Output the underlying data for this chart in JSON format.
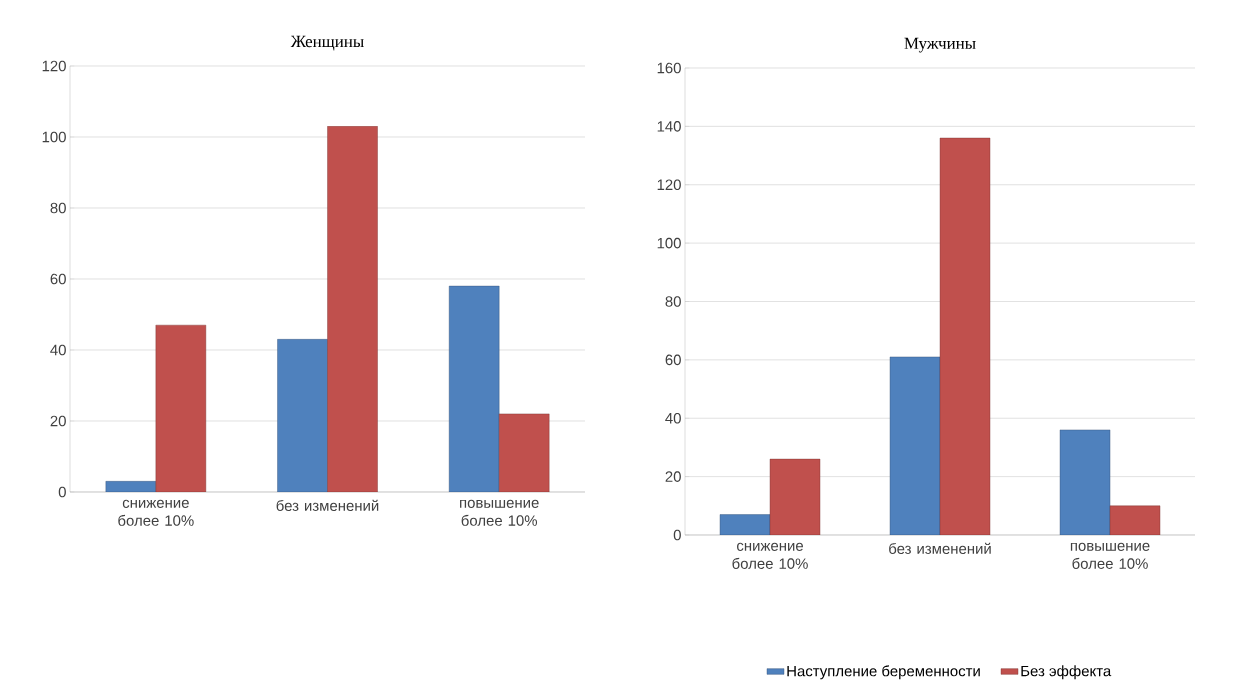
{
  "chart_data": [
    {
      "type": "bar",
      "title": "Женщины",
      "categories": [
        "снижение более 10%",
        "без изменений",
        "повышение более 10%"
      ],
      "series": [
        {
          "color": "#4f81bd",
          "values": [
            3,
            43,
            58
          ]
        },
        {
          "color": "#c0504d",
          "values": [
            47,
            103,
            22
          ]
        }
      ],
      "ylim": [
        0,
        120
      ],
      "yticks": [
        0,
        20,
        40,
        60,
        80,
        100,
        120
      ],
      "grid": "y"
    },
    {
      "type": "bar",
      "title": "Мужчины",
      "categories": [
        "снижение более 10%",
        "без изменений",
        "повышение более 10%"
      ],
      "series": [
        {
          "name": "Наступление беременности",
          "color": "#4f81bd",
          "values": [
            7,
            61,
            36
          ]
        },
        {
          "name": "Без эффекта",
          "color": "#c0504d",
          "values": [
            26,
            136,
            10
          ]
        }
      ],
      "ylim": [
        0,
        160
      ],
      "yticks": [
        0,
        20,
        40,
        60,
        80,
        100,
        120,
        140,
        160
      ],
      "grid": "y",
      "legend": "bottom"
    }
  ]
}
